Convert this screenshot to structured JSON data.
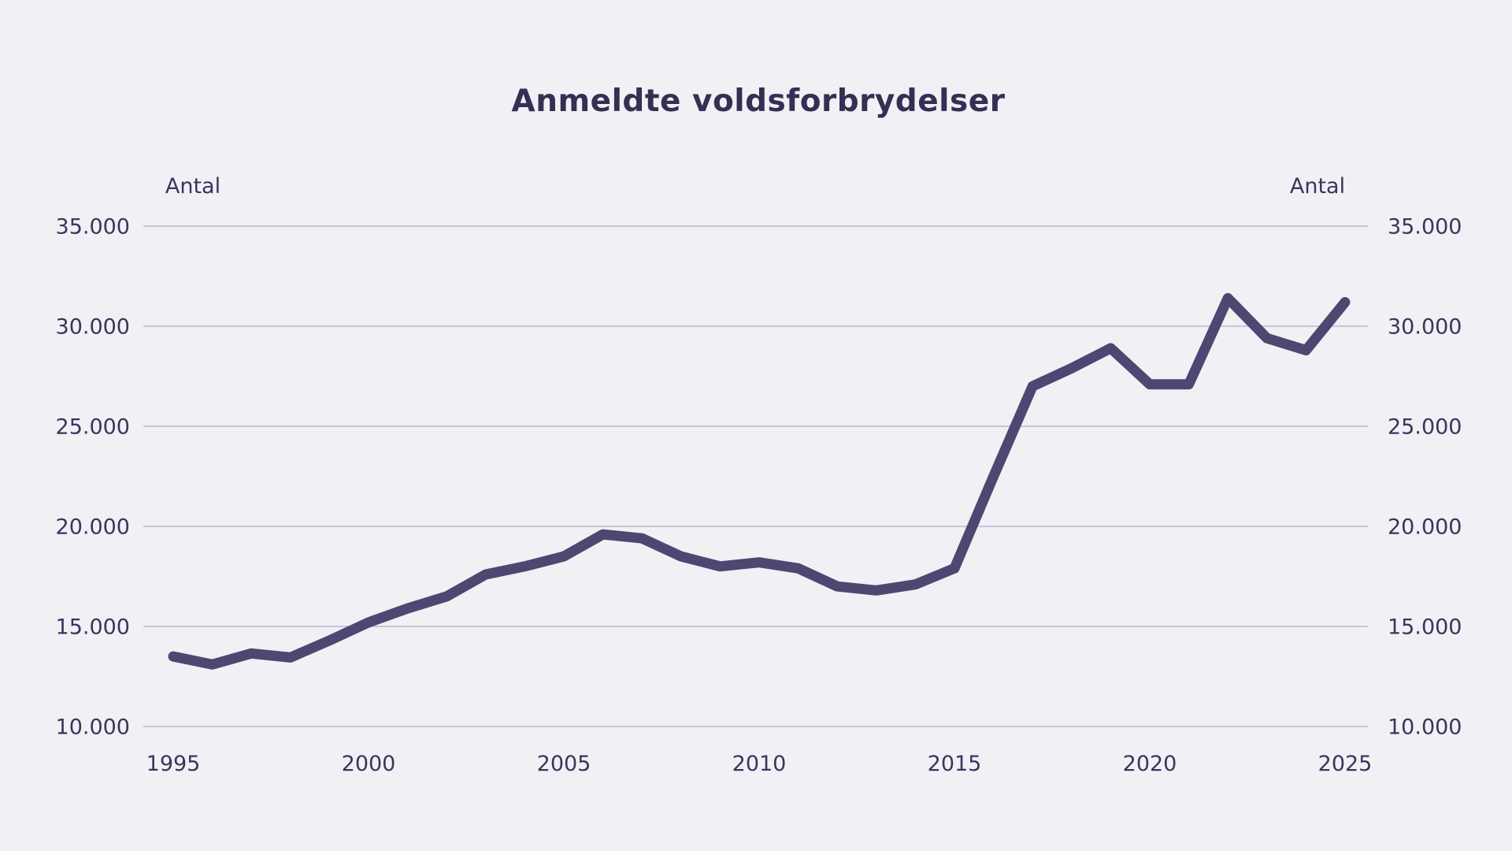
{
  "title": "Anmeldte voldsforbrydelser",
  "y_axis": {
    "unit_label_left": "Antal",
    "unit_label_right": "Antal",
    "tick_labels": [
      "35.000",
      "30.000",
      "25.000",
      "20.000",
      "15.000",
      "10.000"
    ],
    "tick_values": [
      35000,
      30000,
      25000,
      20000,
      15000,
      10000
    ]
  },
  "x_axis": {
    "tick_labels": [
      "1995",
      "2000",
      "2005",
      "2010",
      "2015",
      "2020",
      "2025"
    ],
    "tick_values": [
      1995,
      2000,
      2005,
      2010,
      2015,
      2020,
      2025
    ]
  },
  "colors": {
    "background": "#f1f0f5",
    "line": "#4f4672",
    "gridline": "#c9c5db",
    "tick_text": "#3a355c",
    "title_text": "#333053"
  },
  "chart_data": {
    "type": "line",
    "title": "Anmeldte voldsforbrydelser",
    "xlabel": "",
    "ylabel": "Antal",
    "x": [
      1995,
      1996,
      1997,
      1998,
      1999,
      2000,
      2001,
      2002,
      2003,
      2004,
      2005,
      2006,
      2007,
      2008,
      2009,
      2010,
      2011,
      2012,
      2013,
      2014,
      2015,
      2016,
      2017,
      2018,
      2019,
      2020,
      2021,
      2022,
      2023,
      2024,
      2025
    ],
    "values": [
      13500,
      13100,
      13650,
      13450,
      14300,
      15200,
      15900,
      16500,
      17600,
      18000,
      18500,
      19600,
      19400,
      18500,
      18000,
      18200,
      17900,
      17000,
      16800,
      17100,
      17900,
      22500,
      27000,
      27900,
      28900,
      27100,
      27100,
      31400,
      29400,
      28800,
      31200
    ],
    "xlim": [
      1995,
      2025
    ],
    "ylim": [
      10000,
      35000
    ],
    "y_tick_step": 5000,
    "grid": "horizontal-only",
    "legend": "none",
    "series_name": "Anmeldte voldsforbrydelser"
  }
}
